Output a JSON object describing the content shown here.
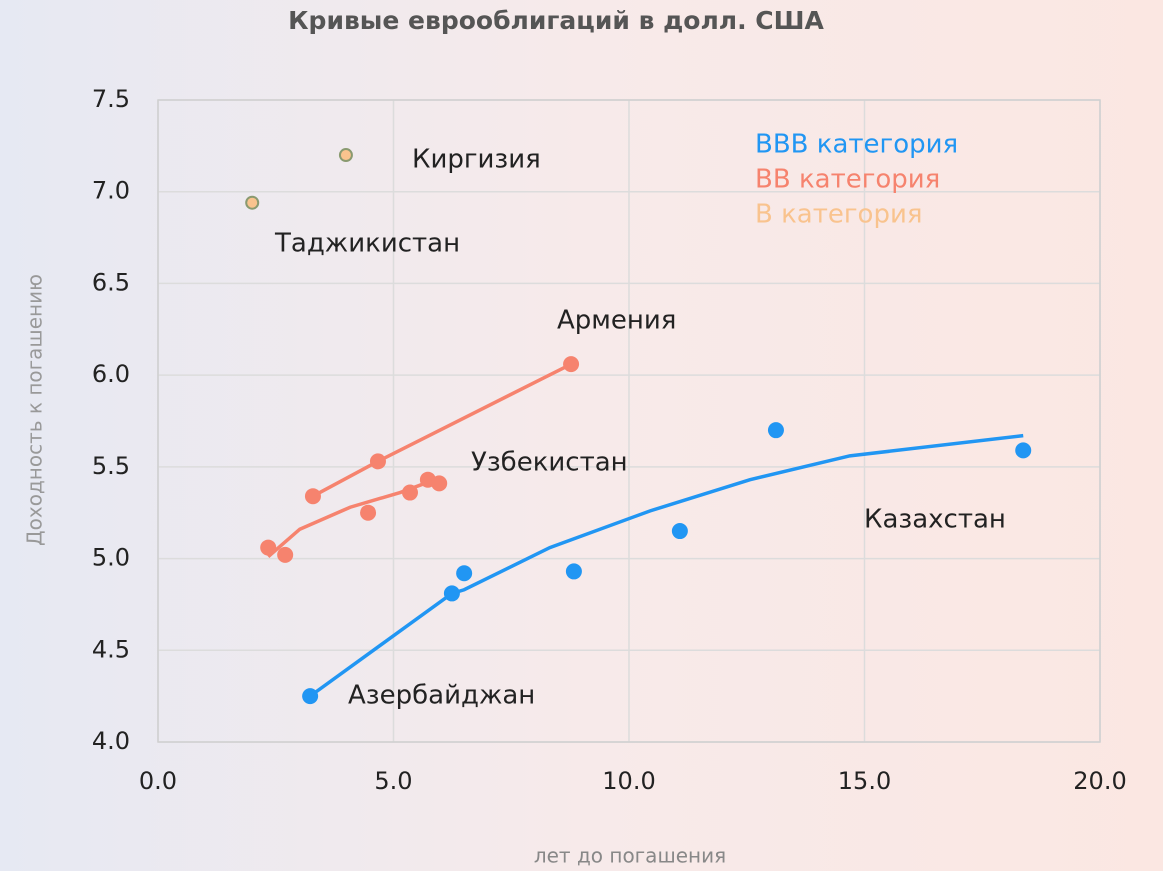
{
  "chart_data": {
    "type": "scatter",
    "title": "Кривые еврооблигаций в долл. США",
    "x_label": "лет до погашения",
    "y_label": "Доходность к погашению",
    "xlim": [
      0,
      20
    ],
    "ylim": [
      4,
      7.5
    ],
    "xticks": [
      {
        "value": 0,
        "label": "0.0"
      },
      {
        "value": 5,
        "label": "5.0"
      },
      {
        "value": 10,
        "label": "10.0"
      },
      {
        "value": 15,
        "label": "15.0"
      },
      {
        "value": 20,
        "label": "20.0"
      }
    ],
    "yticks": [
      {
        "value": 4,
        "label": "4.0"
      },
      4.5,
      {
        "value": 5,
        "label": "5.0"
      },
      5.5,
      {
        "value": 6,
        "label": "6.0"
      },
      6.5,
      {
        "value": 7,
        "label": "7.0"
      },
      7.5
    ],
    "grid": true,
    "series": [
      {
        "name": "BBB категория",
        "color": "#2196f3",
        "x": [
          3.23,
          6.24,
          6.5,
          8.83,
          11.08,
          13.12,
          18.37
        ],
        "values": [
          4.25,
          4.81,
          4.92,
          4.93,
          5.15,
          5.7,
          5.59
        ]
      },
      {
        "name": "BB категория",
        "color": "#f6836e",
        "x": [
          3.29,
          4.67,
          8.77,
          2.34,
          2.7,
          4.46,
          5.35,
          5.73,
          5.97
        ],
        "values": [
          5.34,
          5.53,
          6.06,
          5.06,
          5.02,
          5.25,
          5.36,
          5.43,
          5.41
        ]
      },
      {
        "name": "B категория",
        "color": "#f9c38e",
        "x": [
          3.99,
          2.0
        ],
        "values": [
          7.2,
          6.94
        ]
      }
    ],
    "trendlines": [
      {
        "color": "#2196f3",
        "x": [
          3.23,
          6.24,
          6.5,
          8.32,
          10.45,
          12.57,
          14.69,
          18.37
        ],
        "values": [
          4.25,
          4.81,
          4.83,
          5.06,
          5.26,
          5.43,
          5.56,
          5.67
        ]
      },
      {
        "color": "#f6836e",
        "x": [
          3.29,
          4.67,
          8.77
        ],
        "values": [
          5.34,
          5.53,
          6.06
        ]
      },
      {
        "color": "#f6836e",
        "x": [
          2.34,
          3.01,
          4.08,
          5.14,
          5.88
        ],
        "values": [
          5.01,
          5.16,
          5.28,
          5.36,
          5.43
        ]
      }
    ],
    "annotations": [
      "Киргизия",
      "Таджикистан",
      "Армения",
      "Узбекистан",
      "Казахстан",
      "Азербайджан"
    ]
  }
}
